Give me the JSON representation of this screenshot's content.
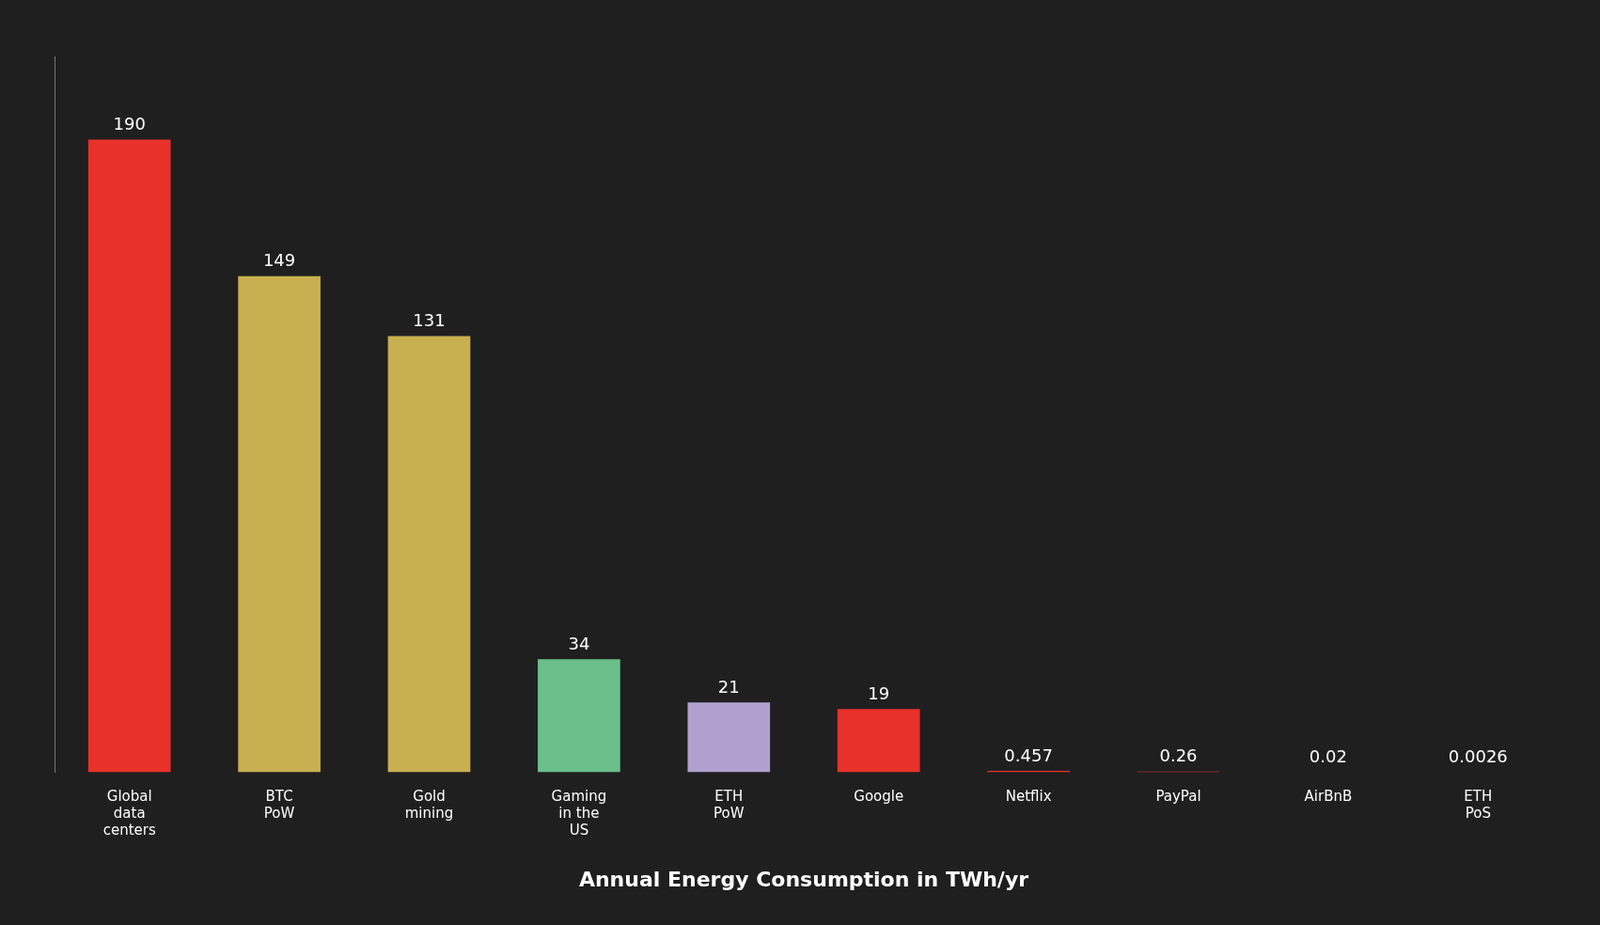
{
  "chart_data": {
    "type": "bar",
    "categories": [
      "Global\ndata\ncenters",
      "BTC\nPoW",
      "Gold\nmining",
      "Gaming\nin the\nUS",
      "ETH\nPoW",
      "Google",
      "Netflix",
      "PayPal",
      "AirBnB",
      "ETH\nPoS"
    ],
    "values": [
      190,
      149,
      131,
      34,
      21,
      19,
      0.457,
      0.26,
      0.02,
      0.0026
    ],
    "colors": [
      "#e8312a",
      "#c8b050",
      "#c8b050",
      "#6abf8a",
      "#b0a0d0",
      "#e8312a",
      "#e8312a",
      "#e8312a",
      "#e8312a",
      "#e8312a"
    ],
    "xlabel": "Annual Energy Consumption in TWh/yr",
    "ylim": [
      0,
      215
    ],
    "data_labels": true,
    "tick_labels": "x",
    "grid": false
  }
}
